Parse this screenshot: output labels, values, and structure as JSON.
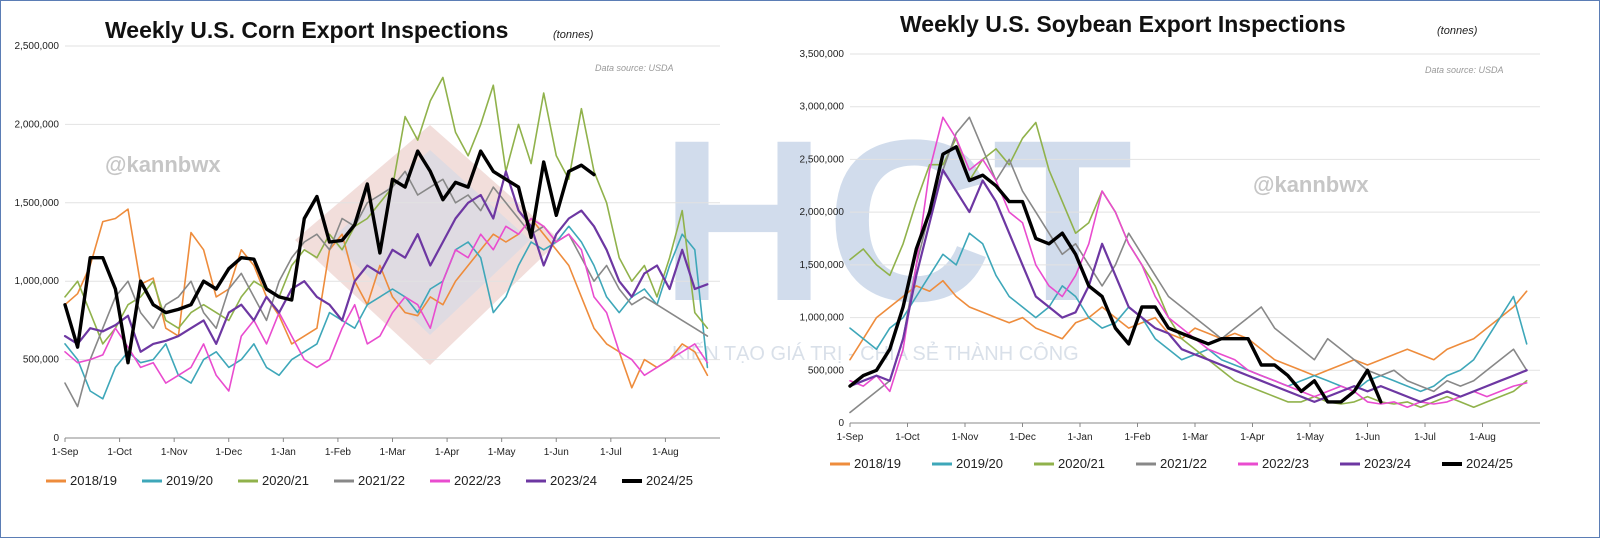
{
  "watermark": {
    "letters": "HCT",
    "slogan": "KIẾN TẠO GIÁ TRỊ - CHIA SẺ THÀNH CÔNG",
    "handle": "@kannbwx"
  },
  "chart_data": [
    {
      "type": "line",
      "title": "Weekly U.S. Corn Export Inspections",
      "unit": "(tonnes)",
      "source": "Data source: USDA",
      "ylim": [
        0,
        2500000
      ],
      "yticks": [
        0,
        500000,
        1000000,
        1500000,
        2000000,
        2500000
      ],
      "ytick_labels": [
        "0",
        "500,000",
        "1,000,000",
        "1,500,000",
        "2,000,000",
        "2,500,000"
      ],
      "xticks": [
        "1-Sep",
        "1-Oct",
        "1-Nov",
        "1-Dec",
        "1-Jan",
        "1-Feb",
        "1-Mar",
        "1-Apr",
        "1-May",
        "1-Jun",
        "1-Jul",
        "1-Aug"
      ],
      "x_unit": "week of marketing year (Sep 1 start)",
      "xlim": [
        0,
        52
      ],
      "grid": true,
      "legend_position": "bottom",
      "series": [
        {
          "name": "2018/19",
          "color": "#ee8c3c",
          "width": 1.6,
          "values": [
            850000,
            920000,
            1100000,
            1380000,
            1400000,
            1460000,
            980000,
            1020000,
            700000,
            650000,
            1310000,
            1200000,
            900000,
            950000,
            1200000,
            1100000,
            900000,
            780000,
            600000,
            650000,
            700000,
            1200000,
            1300000,
            1000000,
            850000,
            1100000,
            900000,
            800000,
            780000,
            900000,
            850000,
            1000000,
            1100000,
            1200000,
            1300000,
            1250000,
            1300000,
            1400000,
            1300000,
            1200000,
            1100000,
            900000,
            700000,
            600000,
            550000,
            320000,
            500000,
            450000,
            500000,
            600000,
            550000,
            400000
          ]
        },
        {
          "name": "2019/20",
          "color": "#3ea7b9",
          "width": 1.6,
          "values": [
            600000,
            500000,
            300000,
            250000,
            450000,
            550000,
            480000,
            500000,
            600000,
            400000,
            350000,
            500000,
            550000,
            450000,
            500000,
            600000,
            450000,
            400000,
            500000,
            550000,
            600000,
            800000,
            750000,
            700000,
            850000,
            900000,
            950000,
            900000,
            800000,
            950000,
            1000000,
            1200000,
            1250000,
            1150000,
            800000,
            900000,
            1100000,
            1250000,
            1200000,
            1250000,
            1350000,
            1250000,
            1100000,
            900000,
            800000,
            900000,
            950000,
            850000,
            1100000,
            1300000,
            1200000,
            450000
          ]
        },
        {
          "name": "2020/21",
          "color": "#90b24b",
          "width": 1.6,
          "values": [
            900000,
            1000000,
            800000,
            600000,
            700000,
            850000,
            900000,
            1000000,
            750000,
            700000,
            800000,
            850000,
            800000,
            750000,
            900000,
            1000000,
            950000,
            900000,
            1100000,
            1200000,
            1150000,
            1300000,
            1200000,
            1350000,
            1400000,
            1500000,
            1600000,
            2050000,
            1900000,
            2150000,
            2300000,
            1950000,
            1800000,
            2000000,
            2250000,
            1700000,
            2000000,
            1750000,
            2200000,
            1800000,
            1650000,
            2100000,
            1700000,
            1500000,
            1150000,
            1000000,
            1100000,
            900000,
            1150000,
            1450000,
            800000,
            700000
          ]
        },
        {
          "name": "2021/22",
          "color": "#888888",
          "width": 1.6,
          "values": [
            350000,
            200000,
            500000,
            700000,
            900000,
            1000000,
            800000,
            700000,
            850000,
            900000,
            1000000,
            800000,
            700000,
            950000,
            1050000,
            900000,
            750000,
            1000000,
            1150000,
            1250000,
            1300000,
            1200000,
            1400000,
            1350000,
            1500000,
            1550000,
            1600000,
            1700000,
            1550000,
            1600000,
            1650000,
            1500000,
            1550000,
            1450000,
            1600000,
            1500000,
            1400000,
            1300000,
            1350000,
            1250000,
            1300000,
            1150000,
            1000000,
            1100000,
            950000,
            850000,
            900000,
            850000,
            800000,
            750000,
            700000,
            650000
          ]
        },
        {
          "name": "2022/23",
          "color": "#e94ccf",
          "width": 1.6,
          "values": [
            550000,
            480000,
            500000,
            530000,
            700000,
            580000,
            450000,
            480000,
            350000,
            400000,
            450000,
            600000,
            400000,
            300000,
            650000,
            750000,
            600000,
            800000,
            650000,
            500000,
            450000,
            500000,
            700000,
            850000,
            600000,
            650000,
            800000,
            900000,
            850000,
            700000,
            1000000,
            1200000,
            1150000,
            1300000,
            1200000,
            1350000,
            1300000,
            1400000,
            1350000,
            1250000,
            1300000,
            1200000,
            900000,
            800000,
            550000,
            500000,
            400000,
            450000,
            500000,
            550000,
            600000,
            480000
          ]
        },
        {
          "name": "2023/24",
          "color": "#6d37a2",
          "width": 2.2,
          "values": [
            650000,
            600000,
            700000,
            680000,
            720000,
            780000,
            550000,
            600000,
            620000,
            650000,
            700000,
            750000,
            600000,
            800000,
            850000,
            750000,
            900000,
            800000,
            950000,
            1000000,
            900000,
            850000,
            750000,
            1000000,
            1100000,
            1050000,
            1200000,
            1150000,
            1300000,
            1100000,
            1250000,
            1400000,
            1500000,
            1550000,
            1400000,
            1700000,
            1450000,
            1350000,
            1100000,
            1300000,
            1400000,
            1450000,
            1350000,
            1200000,
            1000000,
            900000,
            1050000,
            1100000,
            950000,
            1200000,
            950000,
            980000
          ]
        },
        {
          "name": "2024/25",
          "color": "#000000",
          "width": 3.4,
          "values": [
            850000,
            580000,
            1150000,
            1150000,
            950000,
            480000,
            1000000,
            850000,
            800000,
            820000,
            850000,
            1000000,
            950000,
            1080000,
            1150000,
            1140000,
            950000,
            900000,
            880000,
            1400000,
            1540000,
            1250000,
            1260000,
            1360000,
            1620000,
            1180000,
            1650000,
            1600000,
            1830000,
            1700000,
            1520000,
            1630000,
            1600000,
            1830000,
            1700000,
            1650000,
            1600000,
            1280000,
            1760000,
            1420000,
            1700000,
            1740000,
            1680000
          ]
        }
      ]
    },
    {
      "type": "line",
      "title": "Weekly U.S. Soybean Export Inspections",
      "unit": "(tonnes)",
      "source": "Data source: USDA",
      "ylim": [
        0,
        3500000
      ],
      "yticks": [
        0,
        500000,
        1000000,
        1500000,
        2000000,
        2500000,
        3000000,
        3500000
      ],
      "ytick_labels": [
        "0",
        "500,000",
        "1,000,000",
        "1,500,000",
        "2,000,000",
        "2,500,000",
        "3,000,000",
        "3,500,000"
      ],
      "xticks": [
        "1-Sep",
        "1-Oct",
        "1-Nov",
        "1-Dec",
        "1-Jan",
        "1-Feb",
        "1-Mar",
        "1-Apr",
        "1-May",
        "1-Jun",
        "1-Jul",
        "1-Aug"
      ],
      "x_unit": "week of marketing year (Sep 1 start)",
      "xlim": [
        0,
        52
      ],
      "grid": true,
      "legend_position": "bottom",
      "series": [
        {
          "name": "2018/19",
          "color": "#ee8c3c",
          "width": 1.6,
          "values": [
            600000,
            800000,
            1000000,
            1100000,
            1200000,
            1300000,
            1250000,
            1350000,
            1200000,
            1100000,
            1050000,
            1000000,
            950000,
            1000000,
            900000,
            850000,
            800000,
            950000,
            1000000,
            1100000,
            1000000,
            900000,
            950000,
            1000000,
            850000,
            800000,
            900000,
            850000,
            800000,
            850000,
            800000,
            700000,
            600000,
            550000,
            500000,
            450000,
            500000,
            550000,
            600000,
            550000,
            600000,
            650000,
            700000,
            650000,
            600000,
            700000,
            750000,
            800000,
            900000,
            1000000,
            1100000,
            1250000
          ]
        },
        {
          "name": "2019/20",
          "color": "#3ea7b9",
          "width": 1.6,
          "values": [
            900000,
            800000,
            700000,
            900000,
            1000000,
            1200000,
            1400000,
            1600000,
            1500000,
            1800000,
            1700000,
            1400000,
            1200000,
            1100000,
            1000000,
            1100000,
            1300000,
            1200000,
            1000000,
            900000,
            950000,
            1100000,
            1000000,
            800000,
            700000,
            600000,
            650000,
            700000,
            600000,
            550000,
            500000,
            450000,
            400000,
            350000,
            400000,
            450000,
            400000,
            350000,
            300000,
            400000,
            450000,
            400000,
            350000,
            300000,
            350000,
            450000,
            500000,
            600000,
            800000,
            1000000,
            1200000,
            750000
          ]
        },
        {
          "name": "2020/21",
          "color": "#90b24b",
          "width": 1.6,
          "values": [
            1550000,
            1650000,
            1500000,
            1400000,
            1700000,
            2100000,
            2450000,
            2450000,
            2700000,
            2300000,
            2500000,
            2600000,
            2450000,
            2700000,
            2850000,
            2400000,
            2100000,
            1800000,
            1900000,
            2200000,
            2000000,
            1700000,
            1500000,
            1300000,
            1000000,
            800000,
            700000,
            600000,
            500000,
            400000,
            350000,
            300000,
            250000,
            200000,
            200000,
            250000,
            200000,
            180000,
            200000,
            250000,
            200000,
            180000,
            200000,
            150000,
            200000,
            250000,
            200000,
            150000,
            200000,
            250000,
            300000,
            400000
          ]
        },
        {
          "name": "2021/22",
          "color": "#888888",
          "width": 1.6,
          "values": [
            100000,
            200000,
            300000,
            400000,
            800000,
            1500000,
            2000000,
            2400000,
            2750000,
            2900000,
            2600000,
            2300000,
            2500000,
            2200000,
            2000000,
            1800000,
            1600000,
            1700000,
            1500000,
            1300000,
            1500000,
            1800000,
            1600000,
            1400000,
            1200000,
            1100000,
            1000000,
            900000,
            800000,
            900000,
            1000000,
            1100000,
            900000,
            800000,
            700000,
            600000,
            800000,
            700000,
            600000,
            500000,
            450000,
            500000,
            400000,
            350000,
            300000,
            400000,
            350000,
            400000,
            500000,
            600000,
            700000,
            500000
          ]
        },
        {
          "name": "2022/23",
          "color": "#e94ccf",
          "width": 1.6,
          "values": [
            400000,
            350000,
            450000,
            300000,
            700000,
            1500000,
            2400000,
            2900000,
            2700000,
            2400000,
            2500000,
            2300000,
            2000000,
            1900000,
            1500000,
            1300000,
            1200000,
            1400000,
            1700000,
            2200000,
            2000000,
            1700000,
            1500000,
            1200000,
            1000000,
            900000,
            800000,
            700000,
            650000,
            600000,
            500000,
            450000,
            400000,
            350000,
            300000,
            250000,
            300000,
            350000,
            300000,
            200000,
            180000,
            200000,
            150000,
            200000,
            180000,
            200000,
            250000,
            300000,
            250000,
            300000,
            350000,
            380000
          ]
        },
        {
          "name": "2023/24",
          "color": "#6d37a2",
          "width": 2.2,
          "values": [
            350000,
            400000,
            450000,
            400000,
            800000,
            1400000,
            1900000,
            2400000,
            2200000,
            2000000,
            2300000,
            2100000,
            1800000,
            1500000,
            1200000,
            1100000,
            1000000,
            1050000,
            1300000,
            1700000,
            1400000,
            1100000,
            1000000,
            900000,
            850000,
            700000,
            650000,
            600000,
            550000,
            500000,
            450000,
            400000,
            350000,
            300000,
            250000,
            200000,
            250000,
            300000,
            350000,
            300000,
            350000,
            300000,
            250000,
            200000,
            250000,
            300000,
            250000,
            300000,
            350000,
            400000,
            450000,
            500000
          ]
        },
        {
          "name": "2024/25",
          "color": "#000000",
          "width": 3.4,
          "values": [
            350000,
            450000,
            500000,
            700000,
            1100000,
            1650000,
            2000000,
            2550000,
            2620000,
            2300000,
            2350000,
            2250000,
            2100000,
            2100000,
            1750000,
            1700000,
            1800000,
            1600000,
            1300000,
            1200000,
            900000,
            750000,
            1100000,
            1100000,
            900000,
            850000,
            800000,
            750000,
            800000,
            800000,
            800000,
            550000,
            550000,
            450000,
            300000,
            400000,
            200000,
            200000,
            300000,
            500000,
            200000
          ]
        }
      ]
    }
  ]
}
